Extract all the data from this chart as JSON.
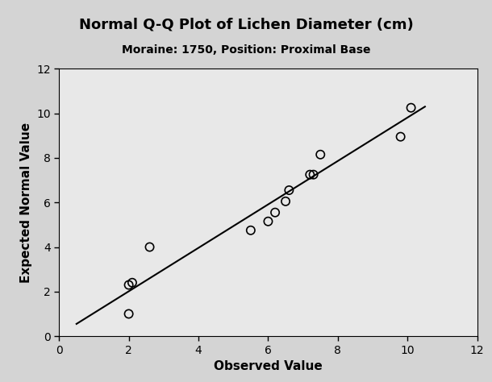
{
  "title": "Normal Q-Q Plot of Lichen Diameter (cm)",
  "subtitle": "Moraine: 1750, Position: Proximal Base",
  "xlabel": "Observed Value",
  "ylabel": "Expected Normal Value",
  "xlim": [
    0,
    12
  ],
  "ylim": [
    0,
    12
  ],
  "xticks": [
    0,
    2,
    4,
    6,
    8,
    10,
    12
  ],
  "yticks": [
    0,
    2,
    4,
    6,
    8,
    10,
    12
  ],
  "points_x": [
    2.0,
    2.0,
    2.1,
    2.6,
    5.5,
    6.0,
    6.2,
    6.5,
    6.6,
    7.2,
    7.3,
    7.5,
    9.8,
    10.1
  ],
  "points_y": [
    1.0,
    2.3,
    2.4,
    4.0,
    4.75,
    5.15,
    5.55,
    6.05,
    6.55,
    7.25,
    7.25,
    8.15,
    8.95,
    10.25
  ],
  "line_x": [
    0.5,
    10.5
  ],
  "line_y": [
    0.55,
    10.3
  ],
  "fig_bg": "#d4d4d4",
  "plot_bg": "#e8e8e8",
  "point_color": "none",
  "point_edgecolor": "#000000",
  "point_size": 55,
  "point_linewidth": 1.2,
  "line_color": "#000000",
  "line_width": 1.5,
  "title_fontsize": 13,
  "subtitle_fontsize": 10,
  "label_fontsize": 11,
  "tick_fontsize": 10
}
